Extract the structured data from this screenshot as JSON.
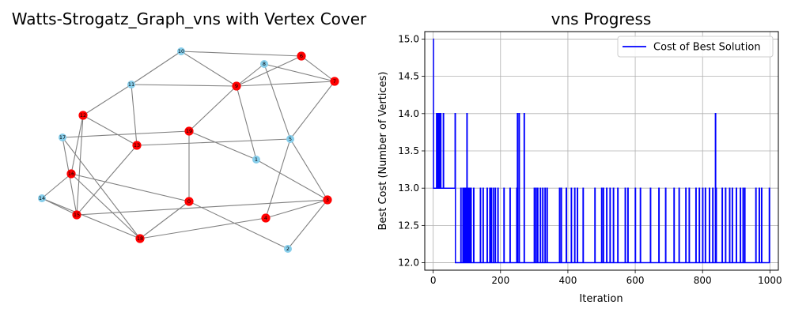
{
  "chart_data": [
    {
      "type": "graph",
      "title": "Watts-Strogatz_Graph_vns with Vertex Cover",
      "colors": {
        "cover": "#ff0000",
        "other": "#87ceeb",
        "edge": "#808080"
      },
      "nodes": [
        {
          "id": "0",
          "label": "0",
          "in_cover": true
        },
        {
          "id": "1",
          "label": "1",
          "in_cover": false
        },
        {
          "id": "2",
          "label": "2",
          "in_cover": false
        },
        {
          "id": "3",
          "label": "3",
          "in_cover": true
        },
        {
          "id": "4",
          "label": "4",
          "in_cover": true
        },
        {
          "id": "5",
          "label": "5",
          "in_cover": false
        },
        {
          "id": "6",
          "label": "6",
          "in_cover": true
        },
        {
          "id": "7",
          "label": "7",
          "in_cover": true
        },
        {
          "id": "8",
          "label": "8",
          "in_cover": false
        },
        {
          "id": "9",
          "label": "9",
          "in_cover": true
        },
        {
          "id": "10",
          "label": "10",
          "in_cover": false
        },
        {
          "id": "11",
          "label": "11",
          "in_cover": false
        },
        {
          "id": "12",
          "label": "12",
          "in_cover": true
        },
        {
          "id": "13",
          "label": "13",
          "in_cover": true
        },
        {
          "id": "14",
          "label": "14",
          "in_cover": false
        },
        {
          "id": "15",
          "label": "15",
          "in_cover": true
        },
        {
          "id": "16",
          "label": "16",
          "in_cover": true
        },
        {
          "id": "17",
          "label": "17",
          "in_cover": false
        },
        {
          "id": "18",
          "label": "18",
          "in_cover": true
        },
        {
          "id": "19",
          "label": "19",
          "in_cover": true
        }
      ],
      "edges": [
        [
          "10",
          "6"
        ],
        [
          "10",
          "11"
        ],
        [
          "10",
          "9"
        ],
        [
          "8",
          "9"
        ],
        [
          "8",
          "7"
        ],
        [
          "8",
          "5"
        ],
        [
          "6",
          "7"
        ],
        [
          "6",
          "9"
        ],
        [
          "11",
          "9"
        ],
        [
          "11",
          "13"
        ],
        [
          "11",
          "12"
        ],
        [
          "9",
          "7"
        ],
        [
          "9",
          "19"
        ],
        [
          "9",
          "1"
        ],
        [
          "7",
          "5"
        ],
        [
          "12",
          "13"
        ],
        [
          "12",
          "15"
        ],
        [
          "12",
          "16"
        ],
        [
          "17",
          "18"
        ],
        [
          "17",
          "15"
        ],
        [
          "17",
          "19"
        ],
        [
          "19",
          "1"
        ],
        [
          "19",
          "0"
        ],
        [
          "13",
          "5"
        ],
        [
          "13",
          "15"
        ],
        [
          "16",
          "18"
        ],
        [
          "16",
          "14"
        ],
        [
          "16",
          "0"
        ],
        [
          "5",
          "4"
        ],
        [
          "5",
          "3"
        ],
        [
          "1",
          "3"
        ],
        [
          "14",
          "15"
        ],
        [
          "14",
          "18"
        ],
        [
          "0",
          "18"
        ],
        [
          "0",
          "2"
        ],
        [
          "3",
          "4"
        ],
        [
          "3",
          "2"
        ],
        [
          "3",
          "15"
        ],
        [
          "4",
          "18"
        ]
      ]
    },
    {
      "type": "line",
      "title": "vns Progress",
      "xlabel": "Iteration",
      "ylabel": "Best Cost (Number of Vertices)",
      "xlim": [
        -25,
        1025
      ],
      "ylim": [
        11.9,
        15.1
      ],
      "x_ticks": [
        0,
        200,
        400,
        600,
        800,
        1000
      ],
      "y_ticks": [
        12.0,
        12.5,
        13.0,
        13.5,
        14.0,
        14.5,
        15.0
      ],
      "y_tick_labels": [
        "12.0",
        "12.5",
        "13.0",
        "13.5",
        "14.0",
        "14.5",
        "15.0"
      ],
      "grid": true,
      "legend_position": "top-right",
      "series": [
        {
          "name": "Cost of Best Solution",
          "color": "#0000ff",
          "base_value": 13,
          "base_after_change": 12,
          "baseline_change_iteration": 65,
          "initial_value": 15,
          "final_iteration": 1000,
          "spikes_to_14": [
            10,
            14,
            18,
            22,
            30,
            65,
            100,
            250,
            255,
            270,
            838
          ],
          "spikes_to_13": [
            82,
            88,
            92,
            96,
            104,
            108,
            112,
            120,
            140,
            148,
            160,
            168,
            172,
            178,
            184,
            192,
            210,
            228,
            248,
            300,
            305,
            310,
            318,
            325,
            332,
            338,
            375,
            380,
            395,
            410,
            420,
            428,
            445,
            480,
            500,
            505,
            515,
            525,
            535,
            548,
            570,
            578,
            600,
            615,
            645,
            670,
            690,
            715,
            730,
            750,
            760,
            780,
            790,
            800,
            808,
            820,
            830,
            840,
            858,
            868,
            880,
            888,
            900,
            912,
            920,
            925,
            958,
            968,
            975,
            998
          ]
        }
      ]
    }
  ]
}
